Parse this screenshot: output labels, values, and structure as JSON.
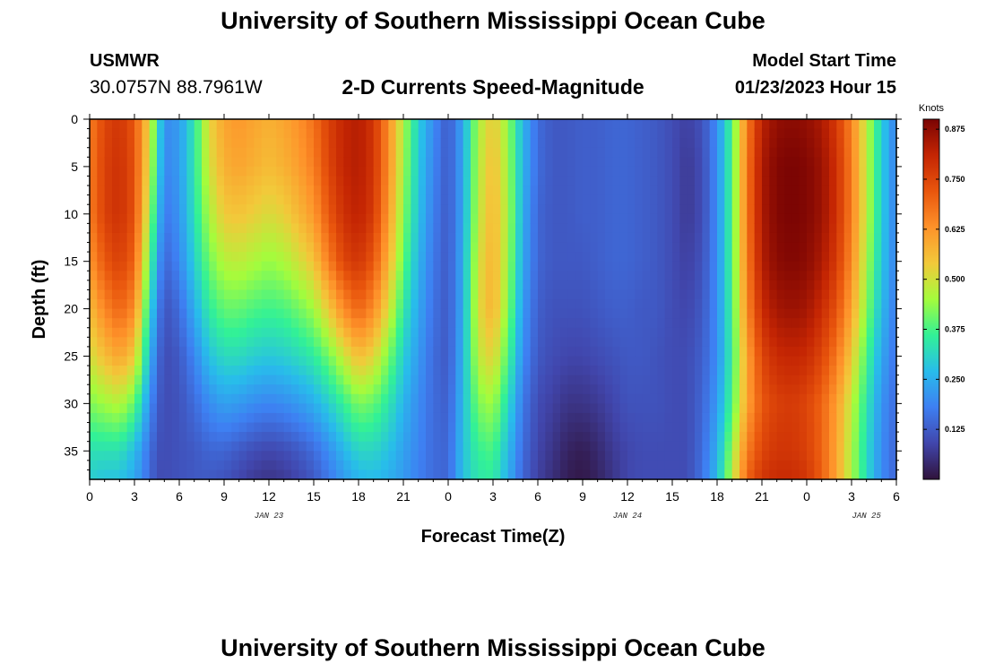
{
  "header": {
    "title": "University of Southern Mississippi Ocean Cube",
    "station": "USMWR",
    "coordinates": "30.0757N  88.7961W",
    "subtitle": "2-D Currents Speed-Magnitude",
    "model_start_label": "Model Start Time",
    "model_start_value": "01/23/2023 Hour 15"
  },
  "footer": {
    "title": "University of Southern Mississippi Ocean Cube"
  },
  "chart_data": {
    "type": "heatmap",
    "title": "2-D Currents Speed-Magnitude",
    "xlabel": "Forecast Time(Z)",
    "ylabel": "Depth (ft)",
    "x_hours_range": [
      0,
      54
    ],
    "x_tick_labels": [
      "0",
      "3",
      "6",
      "9",
      "12",
      "15",
      "18",
      "21",
      "0",
      "3",
      "6",
      "9",
      "12",
      "15",
      "18",
      "21",
      "0",
      "3",
      "6"
    ],
    "x_date_labels": [
      {
        "text": "JAN 23",
        "hour": 12
      },
      {
        "text": "JAN 24",
        "hour": 36
      },
      {
        "text": "JAN 25",
        "hour": 52
      }
    ],
    "y_range": [
      0,
      38
    ],
    "y_ticks": [
      0,
      5,
      10,
      15,
      20,
      25,
      30,
      35
    ],
    "colorbar": {
      "unit": "Knots",
      "range": [
        0,
        0.9
      ],
      "ticks": [
        "0.875",
        "0.750",
        "0.625",
        "0.500",
        "0.375",
        "0.250",
        "0.125"
      ],
      "tick_values": [
        0.875,
        0.75,
        0.625,
        0.5,
        0.375,
        0.25,
        0.125
      ]
    },
    "colormap": [
      "#30123b",
      "#4146ac",
      "#3e7ff2",
      "#28bceb",
      "#32f197",
      "#a4fc3c",
      "#f2c93a",
      "#fe922a",
      "#e9560d",
      "#c42503",
      "#7a0403"
    ],
    "speed_profiles_knots": {
      "hours": [
        0,
        1,
        2,
        3,
        4,
        4.5,
        5,
        6,
        7,
        8,
        9,
        10,
        11,
        12,
        13,
        14,
        15,
        16,
        17,
        18,
        19,
        20,
        21,
        22,
        23,
        24,
        25,
        26,
        27,
        28,
        29,
        30,
        31,
        32,
        33,
        34,
        35,
        36,
        37,
        38,
        39,
        40,
        41,
        42,
        43,
        44,
        45,
        46,
        47,
        48,
        49,
        50,
        51,
        52,
        53,
        54
      ],
      "depth_ft": [
        0,
        5,
        10,
        15,
        20,
        25,
        30,
        35,
        38
      ],
      "speed": [
        [
          0.66,
          0.66,
          0.66,
          0.62,
          0.56,
          0.5,
          0.42,
          0.33,
          0.3
        ],
        [
          0.75,
          0.76,
          0.76,
          0.72,
          0.65,
          0.56,
          0.45,
          0.33,
          0.28
        ],
        [
          0.78,
          0.79,
          0.79,
          0.76,
          0.7,
          0.6,
          0.47,
          0.33,
          0.28
        ],
        [
          0.72,
          0.73,
          0.73,
          0.7,
          0.64,
          0.54,
          0.4,
          0.27,
          0.24
        ],
        [
          0.52,
          0.5,
          0.46,
          0.4,
          0.33,
          0.27,
          0.21,
          0.16,
          0.15
        ],
        [
          0.36,
          0.34,
          0.3,
          0.25,
          0.2,
          0.16,
          0.13,
          0.11,
          0.1
        ],
        [
          0.2,
          0.19,
          0.17,
          0.14,
          0.11,
          0.1,
          0.1,
          0.1,
          0.1
        ],
        [
          0.22,
          0.22,
          0.21,
          0.19,
          0.15,
          0.12,
          0.11,
          0.11,
          0.11
        ],
        [
          0.34,
          0.34,
          0.33,
          0.3,
          0.25,
          0.19,
          0.15,
          0.12,
          0.12
        ],
        [
          0.52,
          0.5,
          0.46,
          0.41,
          0.35,
          0.28,
          0.2,
          0.14,
          0.12
        ],
        [
          0.6,
          0.58,
          0.54,
          0.47,
          0.4,
          0.32,
          0.23,
          0.14,
          0.11
        ],
        [
          0.62,
          0.6,
          0.55,
          0.48,
          0.4,
          0.32,
          0.22,
          0.12,
          0.09
        ],
        [
          0.6,
          0.58,
          0.53,
          0.46,
          0.38,
          0.3,
          0.2,
          0.1,
          0.07
        ],
        [
          0.58,
          0.56,
          0.51,
          0.44,
          0.37,
          0.29,
          0.19,
          0.09,
          0.06
        ],
        [
          0.6,
          0.58,
          0.53,
          0.46,
          0.38,
          0.3,
          0.2,
          0.1,
          0.07
        ],
        [
          0.63,
          0.61,
          0.57,
          0.5,
          0.41,
          0.32,
          0.22,
          0.12,
          0.09
        ],
        [
          0.68,
          0.66,
          0.62,
          0.55,
          0.45,
          0.35,
          0.25,
          0.15,
          0.12
        ],
        [
          0.76,
          0.75,
          0.72,
          0.66,
          0.54,
          0.41,
          0.3,
          0.2,
          0.17
        ],
        [
          0.81,
          0.81,
          0.79,
          0.75,
          0.64,
          0.49,
          0.36,
          0.26,
          0.22
        ],
        [
          0.83,
          0.83,
          0.82,
          0.78,
          0.7,
          0.56,
          0.42,
          0.31,
          0.26
        ],
        [
          0.78,
          0.78,
          0.77,
          0.72,
          0.64,
          0.52,
          0.4,
          0.31,
          0.27
        ],
        [
          0.64,
          0.64,
          0.62,
          0.58,
          0.51,
          0.42,
          0.34,
          0.28,
          0.25
        ],
        [
          0.46,
          0.45,
          0.43,
          0.4,
          0.35,
          0.3,
          0.26,
          0.23,
          0.22
        ],
        [
          0.3,
          0.29,
          0.28,
          0.26,
          0.24,
          0.22,
          0.2,
          0.19,
          0.18
        ],
        [
          0.2,
          0.19,
          0.18,
          0.17,
          0.16,
          0.15,
          0.15,
          0.15,
          0.15
        ],
        [
          0.12,
          0.12,
          0.12,
          0.12,
          0.12,
          0.12,
          0.13,
          0.14,
          0.14
        ],
        [
          0.24,
          0.24,
          0.24,
          0.25,
          0.25,
          0.26,
          0.27,
          0.28,
          0.28
        ],
        [
          0.46,
          0.47,
          0.48,
          0.5,
          0.51,
          0.48,
          0.42,
          0.36,
          0.34
        ],
        [
          0.54,
          0.56,
          0.57,
          0.58,
          0.58,
          0.53,
          0.45,
          0.38,
          0.35
        ],
        [
          0.44,
          0.45,
          0.46,
          0.45,
          0.43,
          0.38,
          0.32,
          0.27,
          0.25
        ],
        [
          0.26,
          0.26,
          0.25,
          0.24,
          0.22,
          0.2,
          0.17,
          0.15,
          0.14
        ],
        [
          0.15,
          0.15,
          0.14,
          0.14,
          0.13,
          0.12,
          0.1,
          0.09,
          0.08
        ],
        [
          0.12,
          0.12,
          0.12,
          0.12,
          0.11,
          0.1,
          0.08,
          0.06,
          0.05
        ],
        [
          0.12,
          0.12,
          0.12,
          0.12,
          0.11,
          0.09,
          0.06,
          0.03,
          0.02
        ],
        [
          0.13,
          0.13,
          0.13,
          0.12,
          0.11,
          0.09,
          0.06,
          0.02,
          0.01
        ],
        [
          0.13,
          0.13,
          0.13,
          0.13,
          0.12,
          0.1,
          0.07,
          0.04,
          0.03
        ],
        [
          0.14,
          0.14,
          0.14,
          0.14,
          0.13,
          0.11,
          0.09,
          0.07,
          0.06
        ],
        [
          0.14,
          0.14,
          0.14,
          0.14,
          0.13,
          0.12,
          0.11,
          0.09,
          0.09
        ],
        [
          0.13,
          0.13,
          0.13,
          0.13,
          0.12,
          0.12,
          0.11,
          0.1,
          0.1
        ],
        [
          0.12,
          0.12,
          0.12,
          0.12,
          0.12,
          0.11,
          0.11,
          0.1,
          0.1
        ],
        [
          0.1,
          0.1,
          0.1,
          0.1,
          0.1,
          0.1,
          0.1,
          0.1,
          0.1
        ],
        [
          0.08,
          0.07,
          0.07,
          0.08,
          0.09,
          0.1,
          0.1,
          0.1,
          0.1
        ],
        [
          0.11,
          0.1,
          0.1,
          0.11,
          0.12,
          0.13,
          0.14,
          0.15,
          0.16
        ],
        [
          0.2,
          0.2,
          0.2,
          0.2,
          0.2,
          0.2,
          0.22,
          0.25,
          0.27
        ],
        [
          0.38,
          0.38,
          0.38,
          0.38,
          0.37,
          0.36,
          0.38,
          0.44,
          0.47
        ],
        [
          0.66,
          0.67,
          0.67,
          0.66,
          0.64,
          0.6,
          0.6,
          0.66,
          0.7
        ],
        [
          0.82,
          0.84,
          0.84,
          0.83,
          0.8,
          0.75,
          0.72,
          0.75,
          0.78
        ],
        [
          0.87,
          0.89,
          0.89,
          0.88,
          0.85,
          0.8,
          0.76,
          0.78,
          0.8
        ],
        [
          0.88,
          0.9,
          0.9,
          0.89,
          0.86,
          0.81,
          0.77,
          0.78,
          0.8
        ],
        [
          0.87,
          0.89,
          0.89,
          0.88,
          0.85,
          0.8,
          0.75,
          0.76,
          0.78
        ],
        [
          0.84,
          0.86,
          0.86,
          0.84,
          0.8,
          0.75,
          0.7,
          0.7,
          0.71
        ],
        [
          0.77,
          0.79,
          0.79,
          0.77,
          0.73,
          0.67,
          0.61,
          0.6,
          0.6
        ],
        [
          0.65,
          0.66,
          0.66,
          0.64,
          0.6,
          0.54,
          0.48,
          0.46,
          0.46
        ],
        [
          0.48,
          0.48,
          0.48,
          0.46,
          0.43,
          0.38,
          0.34,
          0.32,
          0.32
        ],
        [
          0.3,
          0.3,
          0.3,
          0.29,
          0.27,
          0.24,
          0.21,
          0.2,
          0.2
        ],
        [
          0.18,
          0.18,
          0.18,
          0.18,
          0.17,
          0.16,
          0.15,
          0.14,
          0.14
        ]
      ]
    }
  }
}
